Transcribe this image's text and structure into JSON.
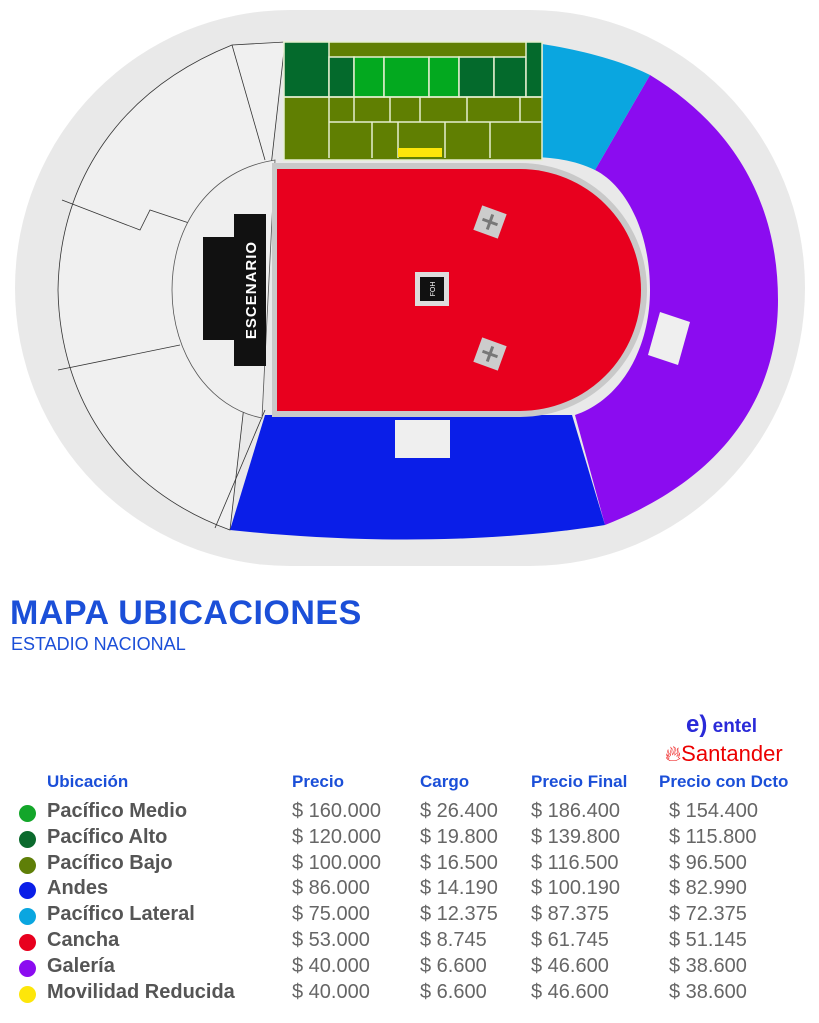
{
  "map": {
    "stage_label": "ESCENARIO",
    "foh_label": "FOH",
    "colors": {
      "pacifico_medio": "#03a91f",
      "pacifico_alto": "#046a2c",
      "pacifico_bajo": "#607f02",
      "andes": "#0a1ee8",
      "pacifico_lateral": "#0aa6e0",
      "cancha": "#e8001e",
      "galeria": "#8b0cf0",
      "movilidad_reducida": "#fde60a"
    }
  },
  "header": {
    "title": "MAPA UBICACIONES",
    "subtitle": "ESTADIO NACIONAL"
  },
  "sponsors": {
    "entel": "entel",
    "santander": "Santander"
  },
  "table": {
    "columns": [
      "Ubicación",
      "Precio",
      "Cargo",
      "Precio Final",
      "Precio con Dcto"
    ],
    "rows": [
      {
        "name": "Pacífico Medio",
        "color": "#13a62a",
        "precio": "$ 160.000",
        "cargo": "$ 26.400",
        "final": "$ 186.400",
        "dcto": "$ 154.400"
      },
      {
        "name": "Pacífico Alto",
        "color": "#0b6a2d",
        "precio": "$ 120.000",
        "cargo": "$ 19.800",
        "final": "$ 139.800",
        "dcto": "$ 115.800"
      },
      {
        "name": "Pacífico Bajo",
        "color": "#5f7f08",
        "precio": "$ 100.000",
        "cargo": "$ 16.500",
        "final": "$ 116.500",
        "dcto": "$ 96.500"
      },
      {
        "name": "Andes",
        "color": "#0a1ee8",
        "precio": "$ 86.000",
        "cargo": "$ 14.190",
        "final": "$ 100.190",
        "dcto": "$ 82.990"
      },
      {
        "name": "Pacífico Lateral",
        "color": "#0aa6e0",
        "precio": "$ 75.000",
        "cargo": "$ 12.375",
        "final": "$ 87.375",
        "dcto": "$ 72.375"
      },
      {
        "name": "Cancha",
        "color": "#e8001e",
        "precio": "$ 53.000",
        "cargo": "$ 8.745",
        "final": "$ 61.745",
        "dcto": "$ 51.145"
      },
      {
        "name": "Galería",
        "color": "#8b0cf0",
        "precio": "$ 40.000",
        "cargo": "$ 6.600",
        "final": "$ 46.600",
        "dcto": "$ 38.600"
      },
      {
        "name": "Movilidad Reducida",
        "color": "#fde60a",
        "precio": "$ 40.000",
        "cargo": "$ 6.600",
        "final": "$ 46.600",
        "dcto": "$ 38.600"
      }
    ]
  }
}
